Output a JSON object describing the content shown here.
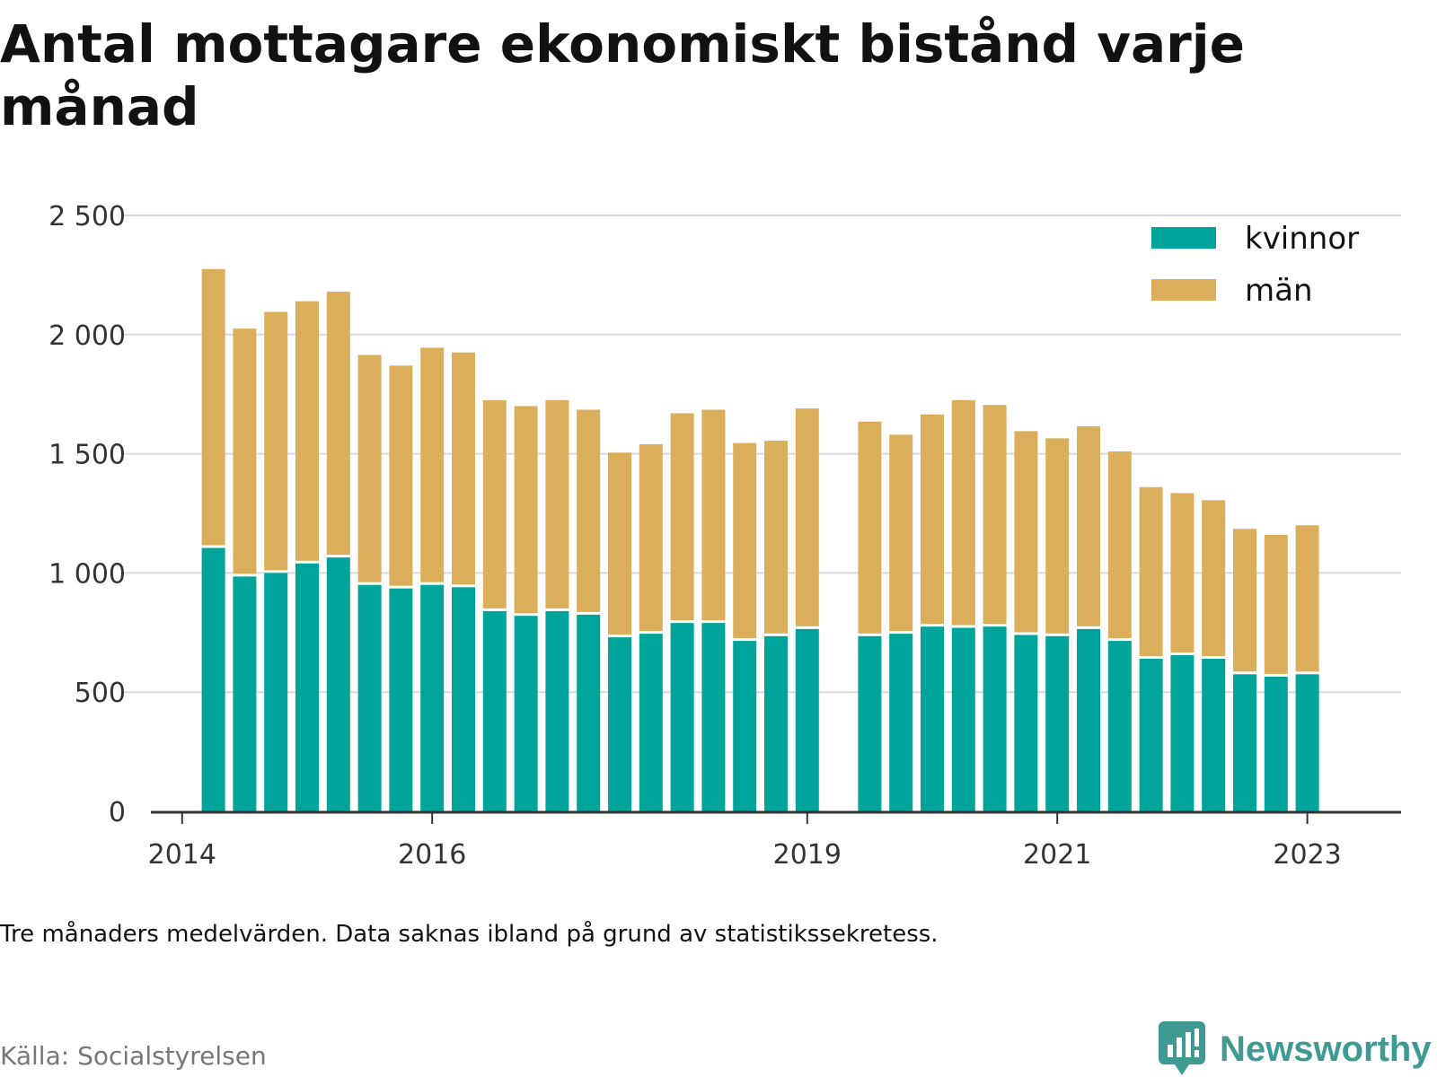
{
  "title": "Antal mottagare ekonomiskt bistånd varje månad",
  "note": "Tre månaders medelvärden. Data saknas ibland på grund av statistikssekretess.",
  "source": "Källa: Socialstyrelsen",
  "brand": {
    "name": "Newsworthy",
    "icon": "newsworthy-logo-icon",
    "color": "#3f9a93"
  },
  "colors": {
    "kvinnor": "#00a49a",
    "man": "#dbae5c",
    "grid": "#d9d9d9",
    "axis": "#333333"
  },
  "chart_data": {
    "type": "bar",
    "stacked": true,
    "title": "Antal mottagare ekonomiskt bistånd varje månad",
    "xlabel": "",
    "ylabel": "",
    "ylim": [
      0,
      2500
    ],
    "yticks": [
      0,
      500,
      1000,
      1500,
      2000,
      2500
    ],
    "ytick_labels": [
      "0",
      "500",
      "1 000",
      "1 500",
      "2 000",
      "2 500"
    ],
    "xticks": [
      {
        "label": "2014",
        "at": 2014.0
      },
      {
        "label": "2016",
        "at": 2016.0
      },
      {
        "label": "2019",
        "at": 2019.0
      },
      {
        "label": "2021",
        "at": 2021.0
      },
      {
        "label": "2023",
        "at": 2023.0
      }
    ],
    "legend": "top-right",
    "grid": true,
    "x": [
      2014.25,
      2014.5,
      2014.75,
      2015.0,
      2015.25,
      2015.5,
      2015.75,
      2016.0,
      2016.25,
      2016.5,
      2016.75,
      2017.0,
      2017.25,
      2017.5,
      2017.75,
      2018.0,
      2018.25,
      2018.5,
      2018.75,
      2019.0,
      2019.5,
      2019.75,
      2020.0,
      2020.25,
      2020.5,
      2020.75,
      2021.0,
      2021.25,
      2021.5,
      2021.75,
      2022.0,
      2022.25,
      2022.5,
      2022.75,
      2023.0
    ],
    "series": [
      {
        "name": "kvinnor",
        "values": [
          1105,
          985,
          1000,
          1040,
          1065,
          950,
          935,
          950,
          940,
          840,
          820,
          840,
          825,
          730,
          745,
          790,
          790,
          715,
          735,
          765,
          735,
          745,
          775,
          770,
          775,
          740,
          735,
          765,
          715,
          640,
          655,
          640,
          575,
          565,
          575
        ]
      },
      {
        "name": "män",
        "values": [
          1170,
          1040,
          1095,
          1100,
          1115,
          965,
          935,
          995,
          985,
          885,
          880,
          885,
          860,
          775,
          795,
          880,
          895,
          830,
          820,
          925,
          900,
          835,
          890,
          955,
          930,
          855,
          830,
          850,
          795,
          720,
          680,
          665,
          610,
          595,
          625
        ]
      }
    ]
  }
}
